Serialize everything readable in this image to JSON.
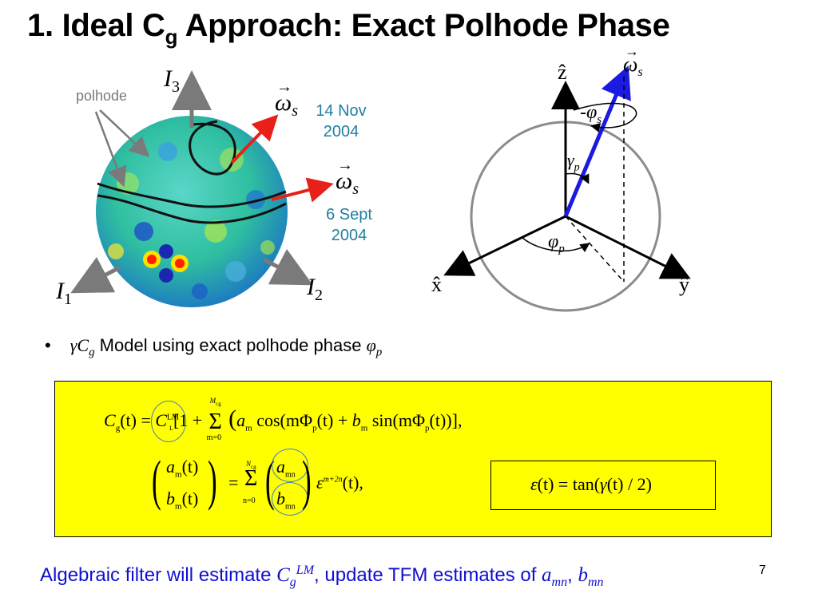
{
  "slide": {
    "title_pre": "1. Ideal C",
    "title_sub": "g",
    "title_post": " Approach: Exact Polhode Phase",
    "page_number": "7"
  },
  "sphere_figure": {
    "polhode_label": "polhode",
    "axis_I3": "I",
    "axis_I3_sub": "3",
    "axis_I1": "I",
    "axis_I1_sub": "1",
    "axis_I2": "I",
    "axis_I2_sub": "2",
    "omega_symbol": "ω",
    "omega_sub": "s",
    "date1_line1": "14 Nov",
    "date1_line2": "2004",
    "date2_line1": "6 Sept",
    "date2_line2": "2004",
    "colors": {
      "arrow_red": "#e8201a",
      "label_teal": "#1f7fa0",
      "axis_gray": "#7a7a7a"
    }
  },
  "frame_figure": {
    "z_label": "ẑ",
    "x_label": "x̂",
    "y_label": "ŷ",
    "omega_label": "ω",
    "omega_sub": "s",
    "minus_phi_label": "-φ",
    "minus_phi_sub": "s",
    "gamma_label": "γ",
    "gamma_sub": "p",
    "phi_label": "φ",
    "phi_sub": "p",
    "colors": {
      "omega_vector": "#1a1ae0",
      "circle": "#8c8c8c"
    }
  },
  "bullet": {
    "marker": "•",
    "gamma": "γ",
    "C": "C",
    "C_sub": "g",
    "text": " Model using exact polhode phase ",
    "phi": "φ",
    "phi_sub": "p"
  },
  "equations": {
    "box_color": "#ffff00",
    "eq1": {
      "lhs": "C",
      "lhs_sub": "g",
      "lhs_arg": "(t) = ",
      "C": "C",
      "C_sup": "LM",
      "C_sub": "L",
      "bracket_open": "[1 +",
      "sum": "Σ",
      "sum_top": "M",
      "sum_top_sub": "cg",
      "sum_bottom": "m=0",
      "a": "a",
      "a_sub": "m",
      "cos_part": " cos(mΦ",
      "phi_sub": "p",
      "t_part": "(t) + ",
      "b": "b",
      "b_sub": "m",
      "sin_part": " sin(mΦ",
      "end_part": "(t))],"
    },
    "eq2": {
      "a": "a",
      "a_sub": "m",
      "b": "b",
      "b_sub": "m",
      "t": "(t)",
      "equals": "=",
      "sum": "Σ",
      "sum_top": "N",
      "sum_top_sub": "cg",
      "sum_bottom": "n=0",
      "amn": "a",
      "amn_sub": "mn",
      "bmn": "b",
      "bmn_sub": "mn",
      "eps": "ε",
      "eps_sup": "m+2n",
      "eps_arg": "(t),"
    },
    "eq3": {
      "eps": "ε",
      "text": "(t) = tan(",
      "gamma": "γ",
      "rest": "(t) / 2)"
    }
  },
  "bottom": {
    "text1": "Algebraic filter will estimate ",
    "C": "C",
    "C_sub": "g",
    "C_sup": "LM",
    "text2": ", update TFM estimates of ",
    "a": "a",
    "a_sub": "mn",
    "comma": ", ",
    "b": "b",
    "b_sub": "mn"
  }
}
